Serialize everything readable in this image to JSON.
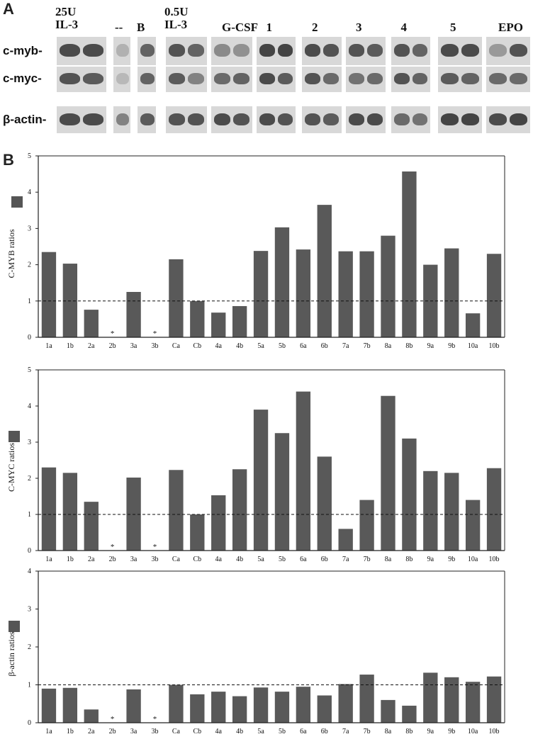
{
  "panel_a": {
    "letter": "A",
    "lane_labels": [
      "25U\nIL-3",
      "--",
      "B",
      "0.5U\nIL-3",
      "G-CSF",
      "1",
      "2",
      "3",
      "4",
      "5",
      "EPO"
    ],
    "row_labels": [
      "c-myb-",
      "c-myc-",
      "β-actin-"
    ]
  },
  "panel_b_letter": "B",
  "chart_data": [
    {
      "type": "bar",
      "ylabel": "C-MYB ratios",
      "ylim": [
        0,
        5
      ],
      "yticks": [
        0,
        1,
        2,
        3,
        4,
        5
      ],
      "reference_line": 1,
      "categories": [
        "1a",
        "1b",
        "2a",
        "2b",
        "3a",
        "3b",
        "Ca",
        "Cb",
        "4a",
        "4b",
        "5a",
        "5b",
        "6a",
        "6b",
        "7a",
        "7b",
        "8a",
        "8b",
        "9a",
        "9b",
        "10a",
        "10b"
      ],
      "values": [
        2.35,
        2.03,
        0.76,
        0,
        1.25,
        0,
        2.15,
        1.0,
        0.68,
        0.86,
        2.38,
        3.03,
        2.42,
        3.65,
        2.37,
        2.37,
        2.8,
        4.57,
        2.0,
        2.45,
        0.66,
        2.3
      ],
      "markers": [
        "",
        "",
        "",
        "*",
        "",
        "*",
        "",
        "",
        "",
        "",
        "",
        "",
        "",
        "",
        "",
        "",
        "",
        "",
        "",
        "",
        "",
        ""
      ]
    },
    {
      "type": "bar",
      "ylabel": "C-MYC ratios",
      "ylim": [
        0,
        5
      ],
      "yticks": [
        0,
        1,
        2,
        3,
        4,
        5
      ],
      "reference_line": 1,
      "categories": [
        "1a",
        "1b",
        "2a",
        "2b",
        "3a",
        "3b",
        "Ca",
        "Cb",
        "4a",
        "4b",
        "5a",
        "5b",
        "6a",
        "6b",
        "7a",
        "7b",
        "8a",
        "8b",
        "9a",
        "9b",
        "10a",
        "10b"
      ],
      "values": [
        2.3,
        2.15,
        1.35,
        0,
        2.02,
        0,
        2.23,
        1.0,
        1.53,
        2.25,
        3.9,
        3.25,
        4.4,
        2.6,
        0.6,
        1.4,
        4.28,
        3.1,
        2.2,
        2.15,
        1.4,
        2.28
      ],
      "markers": [
        "",
        "",
        "",
        "*",
        "",
        "*",
        "",
        "",
        "",
        "",
        "",
        "",
        "",
        "",
        "",
        "",
        "",
        "",
        "",
        "",
        "",
        ""
      ]
    },
    {
      "type": "bar",
      "ylabel": "β-actin ratios",
      "ylim": [
        0,
        4
      ],
      "yticks": [
        0,
        1,
        2,
        3,
        4
      ],
      "reference_line": 1,
      "categories": [
        "1a",
        "1b",
        "2a",
        "2b",
        "3a",
        "3b",
        "Ca",
        "Cb",
        "4a",
        "4b",
        "5a",
        "5b",
        "6a",
        "6b",
        "7a",
        "7b",
        "8a",
        "8b",
        "9a",
        "9b",
        "10a",
        "10b"
      ],
      "values": [
        0.9,
        0.92,
        0.35,
        0,
        0.88,
        0,
        1.0,
        0.75,
        0.82,
        0.7,
        0.93,
        0.82,
        0.95,
        0.72,
        1.02,
        1.27,
        0.6,
        0.45,
        1.32,
        1.2,
        1.08,
        1.22
      ],
      "markers": [
        "",
        "",
        "",
        "*",
        "",
        "*",
        "",
        "",
        "",
        "",
        "",
        "",
        "",
        "",
        "",
        "",
        "",
        "",
        "",
        "",
        "",
        ""
      ]
    }
  ],
  "colors": {
    "bar": "#595959",
    "axis": "#222222",
    "blot_band": "#555555",
    "legend": "#555555"
  }
}
